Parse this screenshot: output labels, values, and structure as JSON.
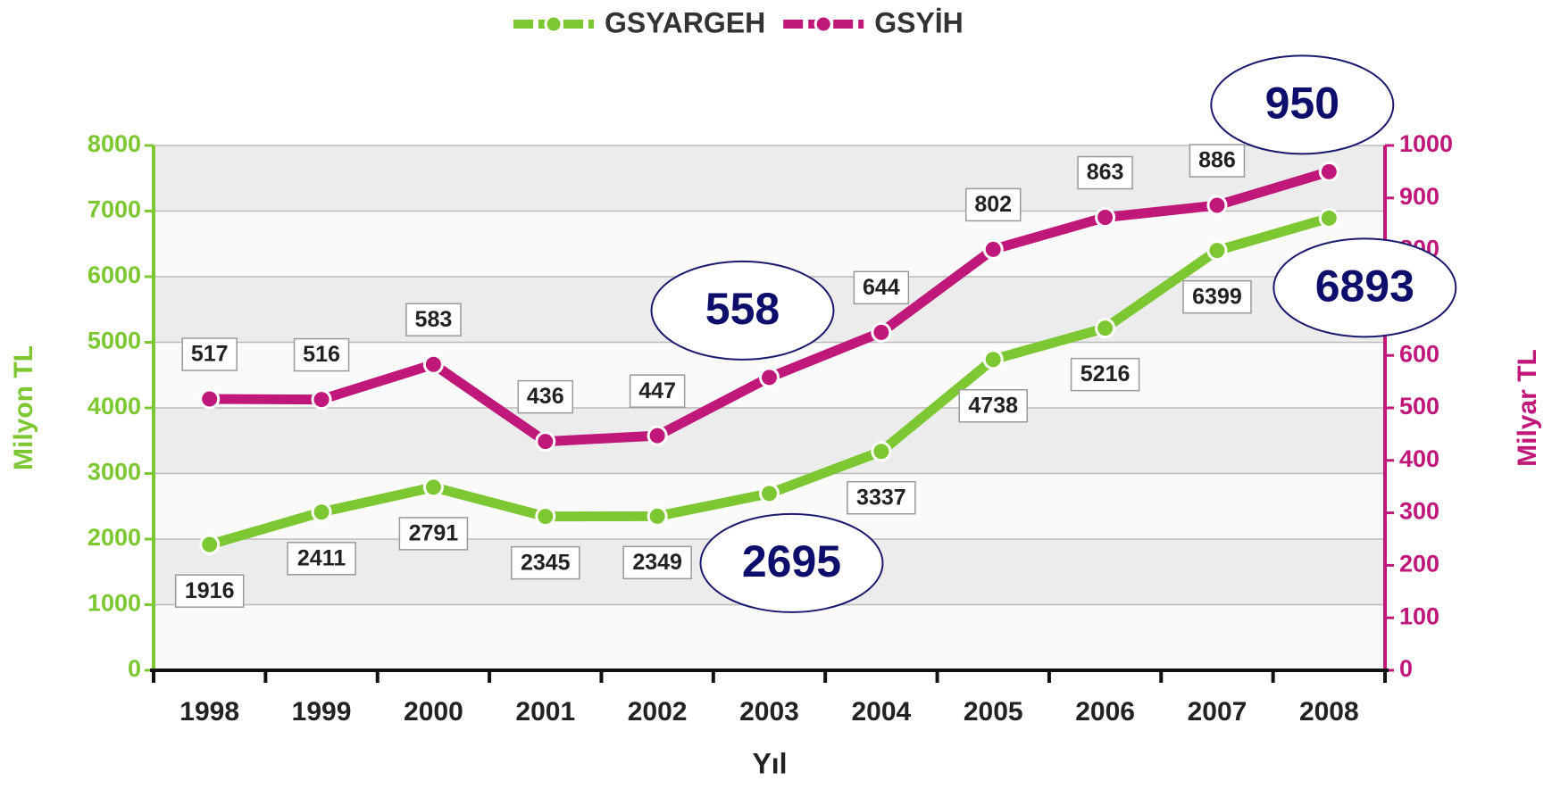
{
  "chart_data": {
    "type": "line",
    "categories": [
      "1998",
      "1999",
      "2000",
      "2001",
      "2002",
      "2003",
      "2004",
      "2005",
      "2006",
      "2007",
      "2008"
    ],
    "series": [
      {
        "name": "GSYARGEH",
        "color": "#7dc832",
        "axis": "y",
        "values": [
          1916,
          2411,
          2791,
          2345,
          2349,
          2695,
          3337,
          4738,
          5216,
          6399,
          6893
        ]
      },
      {
        "name": "GSYİH",
        "color": "#c0187a",
        "axis": "y2",
        "values": [
          517,
          516,
          583,
          436,
          447,
          558,
          644,
          802,
          863,
          886,
          950
        ]
      }
    ],
    "xlabel": "Yıl",
    "ylabel": "Milyon TL",
    "y2label": "Milyar TL",
    "ylim": [
      0,
      8000
    ],
    "yticks": [
      0,
      1000,
      2000,
      3000,
      4000,
      5000,
      6000,
      7000,
      8000
    ],
    "y2lim": [
      0,
      1000
    ],
    "y2ticks": [
      0,
      100,
      200,
      300,
      400,
      500,
      600,
      700,
      800,
      900,
      1000
    ],
    "grid": true,
    "legend": "top"
  }
}
